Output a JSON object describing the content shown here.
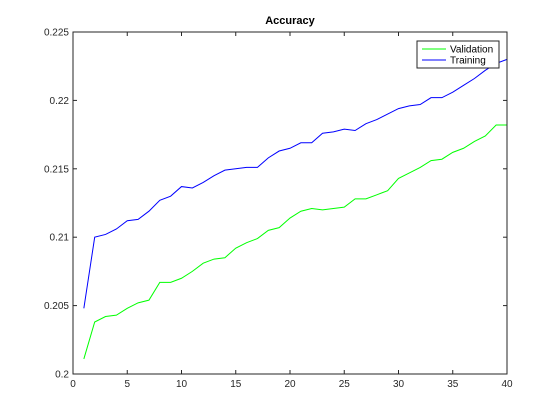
{
  "chart_data": {
    "type": "line",
    "title": "Accuracy",
    "xlabel": "",
    "ylabel": "",
    "xlim": [
      0,
      40
    ],
    "ylim": [
      0.2,
      0.225
    ],
    "x_ticks": [
      0,
      5,
      10,
      15,
      20,
      25,
      30,
      35,
      40
    ],
    "y_ticks": [
      0.2,
      0.205,
      0.21,
      0.215,
      0.22,
      0.225
    ],
    "x_tick_labels": [
      "0",
      "5",
      "10",
      "15",
      "20",
      "25",
      "30",
      "35",
      "40"
    ],
    "y_tick_labels": [
      "0.2",
      "0.205",
      "0.21",
      "0.215",
      "0.22",
      "0.225"
    ],
    "grid": false,
    "legend": "top-right",
    "x": [
      1,
      2,
      3,
      4,
      5,
      6,
      7,
      8,
      9,
      10,
      11,
      12,
      13,
      14,
      15,
      16,
      17,
      18,
      19,
      20,
      21,
      22,
      23,
      24,
      25,
      26,
      27,
      28,
      29,
      30,
      31,
      32,
      33,
      34,
      35,
      36,
      37,
      38,
      39,
      40
    ],
    "series": [
      {
        "name": "Validation",
        "color": "#00ff00",
        "values": [
          0.2011,
          0.2038,
          0.2042,
          0.2043,
          0.2048,
          0.2052,
          0.2054,
          0.2067,
          0.2067,
          0.207,
          0.2075,
          0.2081,
          0.2084,
          0.2085,
          0.2092,
          0.2096,
          0.2099,
          0.2105,
          0.2107,
          0.2114,
          0.2119,
          0.2121,
          0.212,
          0.2121,
          0.2122,
          0.2128,
          0.2128,
          0.2131,
          0.2134,
          0.2143,
          0.2147,
          0.2151,
          0.2156,
          0.2157,
          0.2162,
          0.2165,
          0.217,
          0.2174,
          0.2182,
          0.2182
        ]
      },
      {
        "name": "Training",
        "color": "#0000ff",
        "values": [
          0.2048,
          0.21,
          0.2102,
          0.2106,
          0.2112,
          0.2113,
          0.2119,
          0.2127,
          0.213,
          0.2137,
          0.2136,
          0.214,
          0.2145,
          0.2149,
          0.215,
          0.2151,
          0.2151,
          0.2158,
          0.2163,
          0.2165,
          0.2169,
          0.2169,
          0.2176,
          0.2177,
          0.2179,
          0.2178,
          0.2183,
          0.2186,
          0.219,
          0.2194,
          0.2196,
          0.2197,
          0.2202,
          0.2202,
          0.2206,
          0.2211,
          0.2216,
          0.2222,
          0.2227,
          0.223
        ]
      }
    ]
  }
}
